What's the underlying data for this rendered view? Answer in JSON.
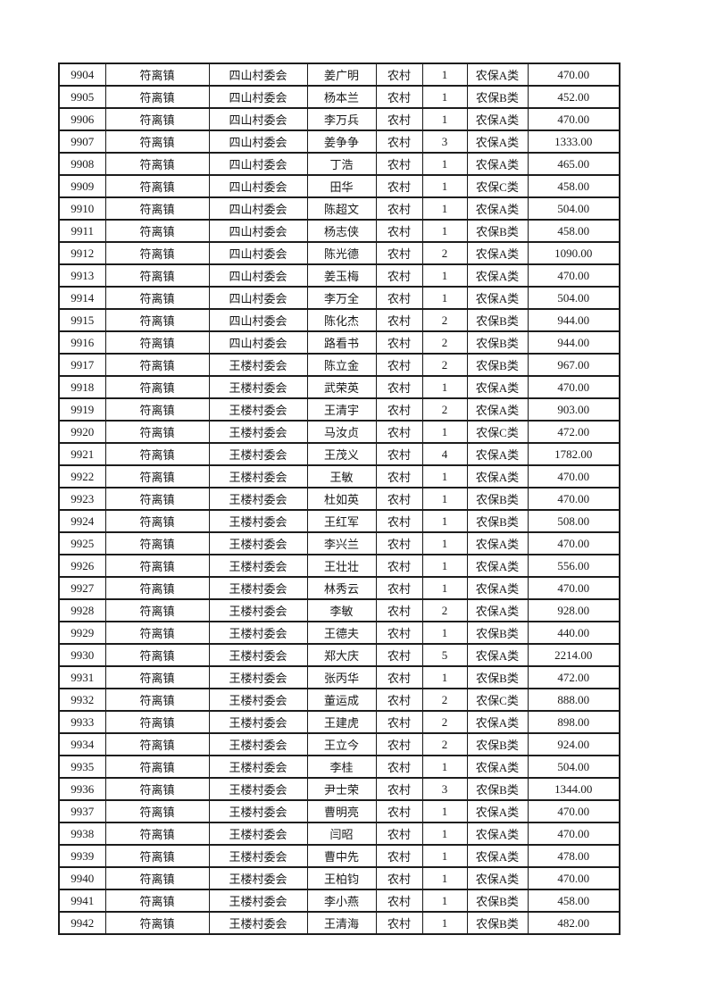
{
  "page": {
    "background_color": "#ffffff",
    "border_color": "#1c1c1c",
    "text_color": "#1a1a1a"
  },
  "table": {
    "column_keys": [
      "serial-number",
      "town",
      "village-committee",
      "person-name",
      "residence-type",
      "person-count",
      "insurance-category",
      "amount"
    ],
    "rows": [
      [
        "9904",
        "符离镇",
        "四山村委会",
        "姜广明",
        "农村",
        "1",
        "农保A类",
        "470.00"
      ],
      [
        "9905",
        "符离镇",
        "四山村委会",
        "杨本兰",
        "农村",
        "1",
        "农保B类",
        "452.00"
      ],
      [
        "9906",
        "符离镇",
        "四山村委会",
        "李万兵",
        "农村",
        "1",
        "农保A类",
        "470.00"
      ],
      [
        "9907",
        "符离镇",
        "四山村委会",
        "姜争争",
        "农村",
        "3",
        "农保A类",
        "1333.00"
      ],
      [
        "9908",
        "符离镇",
        "四山村委会",
        "丁浩",
        "农村",
        "1",
        "农保A类",
        "465.00"
      ],
      [
        "9909",
        "符离镇",
        "四山村委会",
        "田华",
        "农村",
        "1",
        "农保C类",
        "458.00"
      ],
      [
        "9910",
        "符离镇",
        "四山村委会",
        "陈超文",
        "农村",
        "1",
        "农保A类",
        "504.00"
      ],
      [
        "9911",
        "符离镇",
        "四山村委会",
        "杨志侠",
        "农村",
        "1",
        "农保B类",
        "458.00"
      ],
      [
        "9912",
        "符离镇",
        "四山村委会",
        "陈光德",
        "农村",
        "2",
        "农保A类",
        "1090.00"
      ],
      [
        "9913",
        "符离镇",
        "四山村委会",
        "姜玉梅",
        "农村",
        "1",
        "农保A类",
        "470.00"
      ],
      [
        "9914",
        "符离镇",
        "四山村委会",
        "李万全",
        "农村",
        "1",
        "农保A类",
        "504.00"
      ],
      [
        "9915",
        "符离镇",
        "四山村委会",
        "陈化杰",
        "农村",
        "2",
        "农保B类",
        "944.00"
      ],
      [
        "9916",
        "符离镇",
        "四山村委会",
        "路看书",
        "农村",
        "2",
        "农保B类",
        "944.00"
      ],
      [
        "9917",
        "符离镇",
        "王楼村委会",
        "陈立金",
        "农村",
        "2",
        "农保B类",
        "967.00"
      ],
      [
        "9918",
        "符离镇",
        "王楼村委会",
        "武荣英",
        "农村",
        "1",
        "农保A类",
        "470.00"
      ],
      [
        "9919",
        "符离镇",
        "王楼村委会",
        "王清宇",
        "农村",
        "2",
        "农保A类",
        "903.00"
      ],
      [
        "9920",
        "符离镇",
        "王楼村委会",
        "马汝贞",
        "农村",
        "1",
        "农保C类",
        "472.00"
      ],
      [
        "9921",
        "符离镇",
        "王楼村委会",
        "王茂义",
        "农村",
        "4",
        "农保A类",
        "1782.00"
      ],
      [
        "9922",
        "符离镇",
        "王楼村委会",
        "王敏",
        "农村",
        "1",
        "农保A类",
        "470.00"
      ],
      [
        "9923",
        "符离镇",
        "王楼村委会",
        "杜如英",
        "农村",
        "1",
        "农保B类",
        "470.00"
      ],
      [
        "9924",
        "符离镇",
        "王楼村委会",
        "王红军",
        "农村",
        "1",
        "农保B类",
        "508.00"
      ],
      [
        "9925",
        "符离镇",
        "王楼村委会",
        "李兴兰",
        "农村",
        "1",
        "农保A类",
        "470.00"
      ],
      [
        "9926",
        "符离镇",
        "王楼村委会",
        "王壮壮",
        "农村",
        "1",
        "农保A类",
        "556.00"
      ],
      [
        "9927",
        "符离镇",
        "王楼村委会",
        "林秀云",
        "农村",
        "1",
        "农保A类",
        "470.00"
      ],
      [
        "9928",
        "符离镇",
        "王楼村委会",
        "李敏",
        "农村",
        "2",
        "农保A类",
        "928.00"
      ],
      [
        "9929",
        "符离镇",
        "王楼村委会",
        "王德夫",
        "农村",
        "1",
        "农保B类",
        "440.00"
      ],
      [
        "9930",
        "符离镇",
        "王楼村委会",
        "郑大庆",
        "农村",
        "5",
        "农保A类",
        "2214.00"
      ],
      [
        "9931",
        "符离镇",
        "王楼村委会",
        "张丙华",
        "农村",
        "1",
        "农保B类",
        "472.00"
      ],
      [
        "9932",
        "符离镇",
        "王楼村委会",
        "董运成",
        "农村",
        "2",
        "农保C类",
        "888.00"
      ],
      [
        "9933",
        "符离镇",
        "王楼村委会",
        "王建虎",
        "农村",
        "2",
        "农保A类",
        "898.00"
      ],
      [
        "9934",
        "符离镇",
        "王楼村委会",
        "王立今",
        "农村",
        "2",
        "农保B类",
        "924.00"
      ],
      [
        "9935",
        "符离镇",
        "王楼村委会",
        "李桂",
        "农村",
        "1",
        "农保A类",
        "504.00"
      ],
      [
        "9936",
        "符离镇",
        "王楼村委会",
        "尹士荣",
        "农村",
        "3",
        "农保B类",
        "1344.00"
      ],
      [
        "9937",
        "符离镇",
        "王楼村委会",
        "曹明亮",
        "农村",
        "1",
        "农保A类",
        "470.00"
      ],
      [
        "9938",
        "符离镇",
        "王楼村委会",
        "闫昭",
        "农村",
        "1",
        "农保A类",
        "470.00"
      ],
      [
        "9939",
        "符离镇",
        "王楼村委会",
        "曹中先",
        "农村",
        "1",
        "农保A类",
        "478.00"
      ],
      [
        "9940",
        "符离镇",
        "王楼村委会",
        "王柏钧",
        "农村",
        "1",
        "农保A类",
        "470.00"
      ],
      [
        "9941",
        "符离镇",
        "王楼村委会",
        "李小燕",
        "农村",
        "1",
        "农保B类",
        "458.00"
      ],
      [
        "9942",
        "符离镇",
        "王楼村委会",
        "王清海",
        "农村",
        "1",
        "农保B类",
        "482.00"
      ]
    ]
  }
}
